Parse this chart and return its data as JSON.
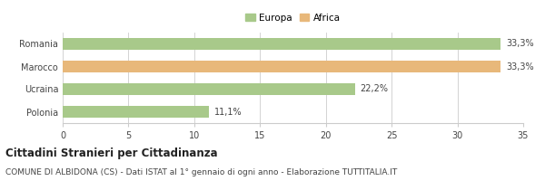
{
  "categories": [
    "Romania",
    "Marocco",
    "Ucraina",
    "Polonia"
  ],
  "values": [
    33.3,
    33.3,
    22.2,
    11.1
  ],
  "colors": [
    "#a8c98a",
    "#e8b87a",
    "#a8c98a",
    "#a8c98a"
  ],
  "labels": [
    "33,3%",
    "33,3%",
    "22,2%",
    "11,1%"
  ],
  "legend": [
    {
      "label": "Europa",
      "color": "#a8c98a"
    },
    {
      "label": "Africa",
      "color": "#e8b87a"
    }
  ],
  "xlim": [
    0,
    35
  ],
  "xticks": [
    0,
    5,
    10,
    15,
    20,
    25,
    30,
    35
  ],
  "title": "Cittadini Stranieri per Cittadinanza",
  "subtitle": "COMUNE DI ALBIDONA (CS) - Dati ISTAT al 1° gennaio di ogni anno - Elaborazione TUTTITALIA.IT",
  "bar_height": 0.55,
  "background_color": "#ffffff",
  "grid_color": "#cccccc",
  "text_color": "#444444",
  "title_fontsize": 8.5,
  "subtitle_fontsize": 6.5,
  "tick_fontsize": 7,
  "label_fontsize": 7,
  "legend_fontsize": 7.5
}
